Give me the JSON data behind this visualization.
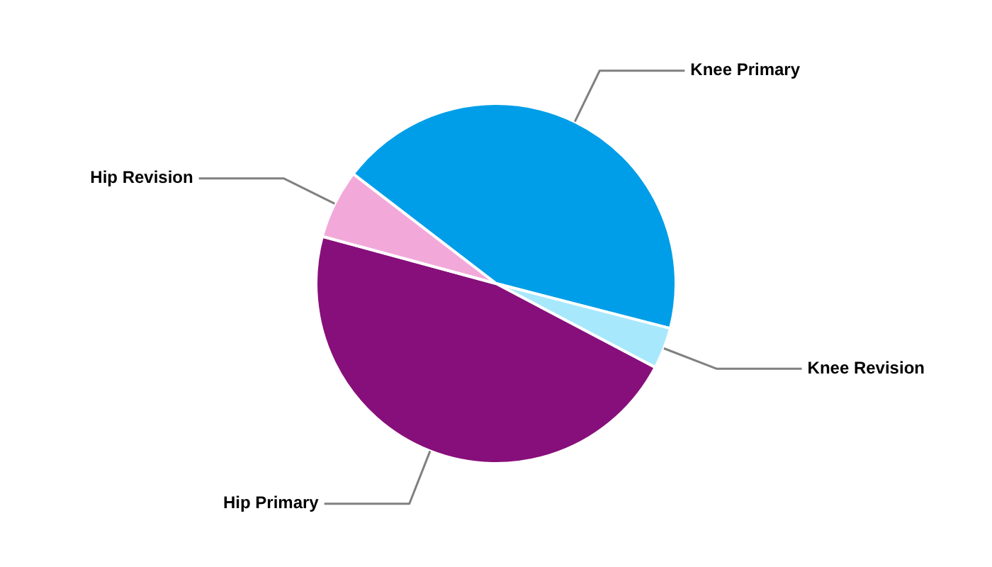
{
  "chart_data": {
    "type": "pie",
    "categories": [
      "Knee Primary",
      "Knee Revision",
      "Hip Primary",
      "Hip Revision"
    ],
    "values": [
      43.6,
      3.7,
      46.5,
      6.2
    ],
    "colors": [
      "#009ee8",
      "#a8e8fc",
      "#870f7b",
      "#f2a9da"
    ],
    "legend": false
  }
}
